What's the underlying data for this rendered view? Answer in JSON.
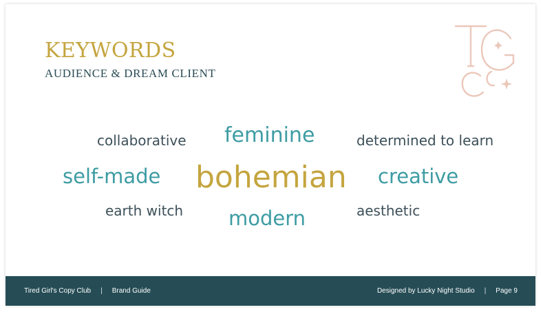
{
  "header": {
    "title": "KEYWORDS",
    "subtitle": "AUDIENCE & DREAM CLIENT"
  },
  "keywords": {
    "collaborative": "collaborative",
    "feminine": "feminine",
    "determined": "determined to learn",
    "self_made": "self-made",
    "bohemian": "bohemian",
    "creative": "creative",
    "earth_witch": "earth witch",
    "modern": "modern",
    "aesthetic": "aesthetic"
  },
  "footer": {
    "brand": "Tired Girl's Copy Club",
    "separator": "|",
    "doc": "Brand Guide",
    "credit": "Designed by Lucky Night Studio",
    "page": "Page 9"
  },
  "colors": {
    "gold": "#c4a53f",
    "teal": "#3e9ca3",
    "dark_slate": "#3d5059",
    "footer_bg": "#264d56",
    "monogram_blush": "#ebc8ba"
  }
}
